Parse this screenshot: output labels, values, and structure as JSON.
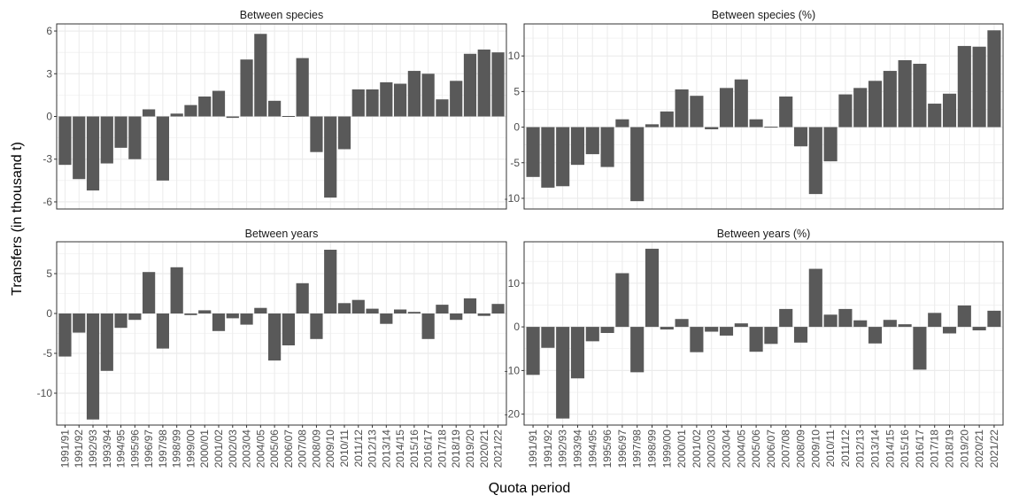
{
  "figure": {
    "ylabel": "Transfers (in thousand t)",
    "xlabel": "Quota period"
  },
  "style": {
    "bar_color": "#595959",
    "panel_bg": "#ffffff",
    "grid_color": "#ebebeb",
    "strip_bg": "#ffffff",
    "axis_text_color": "#4d4d4d"
  },
  "chart_data": [
    {
      "type": "bar",
      "title": "Between species",
      "categories": [
        "1991/91",
        "1991/92",
        "1992/93",
        "1993/94",
        "1994/95",
        "1995/96",
        "1996/97",
        "1997/98",
        "1998/99",
        "1999/00",
        "2000/01",
        "2001/02",
        "2002/03",
        "2003/04",
        "2004/05",
        "2005/06",
        "2006/07",
        "2007/08",
        "2008/09",
        "2009/10",
        "2010/11",
        "2011/12",
        "2012/13",
        "2013/14",
        "2014/15",
        "2015/16",
        "2016/17",
        "2017/18",
        "2018/19",
        "2019/20",
        "2020/21",
        "2021/22"
      ],
      "values": [
        -3.4,
        -4.4,
        -5.2,
        -3.3,
        -2.2,
        -3.0,
        0.5,
        -4.5,
        0.2,
        0.8,
        1.4,
        1.8,
        -0.1,
        4.0,
        5.8,
        1.1,
        -0.05,
        4.1,
        -2.5,
        -5.7,
        -2.3,
        1.9,
        1.9,
        2.4,
        2.3,
        3.2,
        3.0,
        1.2,
        2.5,
        4.4,
        4.7,
        4.5
      ],
      "ylim": [
        -6.5,
        6.5
      ],
      "yticks": [
        -6,
        -3,
        0,
        3,
        6
      ],
      "grid": true
    },
    {
      "type": "bar",
      "title": "Between species (%)",
      "categories": [
        "1991/91",
        "1991/92",
        "1992/93",
        "1993/94",
        "1994/95",
        "1995/96",
        "1996/97",
        "1997/98",
        "1998/99",
        "1999/00",
        "2000/01",
        "2001/02",
        "2002/03",
        "2003/04",
        "2004/05",
        "2005/06",
        "2006/07",
        "2007/08",
        "2008/09",
        "2009/10",
        "2010/11",
        "2011/12",
        "2012/13",
        "2013/14",
        "2014/15",
        "2015/16",
        "2016/17",
        "2017/18",
        "2018/19",
        "2019/20",
        "2020/21",
        "2021/22"
      ],
      "values": [
        -7.0,
        -8.5,
        -8.3,
        -5.3,
        -3.8,
        -5.6,
        1.1,
        -10.4,
        0.4,
        2.2,
        5.3,
        4.4,
        -0.3,
        5.5,
        6.7,
        1.1,
        0.0,
        4.3,
        -2.7,
        -9.4,
        -4.8,
        4.6,
        5.5,
        6.5,
        7.9,
        9.4,
        8.9,
        3.3,
        4.7,
        11.4,
        11.3,
        13.6
      ],
      "ylim": [
        -11.5,
        14.5
      ],
      "yticks": [
        -10,
        -5,
        0,
        5,
        10
      ],
      "grid": true
    },
    {
      "type": "bar",
      "title": "Between years",
      "categories": [
        "1991/91",
        "1991/92",
        "1992/93",
        "1993/94",
        "1994/95",
        "1995/96",
        "1996/97",
        "1997/98",
        "1998/99",
        "1999/00",
        "2000/01",
        "2001/02",
        "2002/03",
        "2003/04",
        "2004/05",
        "2005/06",
        "2006/07",
        "2007/08",
        "2008/09",
        "2009/10",
        "2010/11",
        "2011/12",
        "2012/13",
        "2013/14",
        "2014/15",
        "2015/16",
        "2016/17",
        "2017/18",
        "2018/19",
        "2019/20",
        "2020/21",
        "2021/22"
      ],
      "values": [
        -5.4,
        -2.4,
        -13.3,
        -7.2,
        -1.8,
        -0.8,
        5.2,
        -4.4,
        5.8,
        -0.2,
        0.4,
        -2.2,
        -0.6,
        -1.4,
        0.7,
        -5.9,
        -4.0,
        3.8,
        -3.2,
        8.0,
        1.3,
        1.7,
        0.6,
        -1.3,
        0.5,
        0.2,
        -3.2,
        1.1,
        -0.8,
        1.9,
        -0.3,
        1.2
      ],
      "ylim": [
        -14.0,
        9.0
      ],
      "yticks": [
        -10,
        -5,
        0,
        5
      ],
      "grid": true
    },
    {
      "type": "bar",
      "title": "Between years (%)",
      "categories": [
        "1991/91",
        "1991/92",
        "1992/93",
        "1993/94",
        "1994/95",
        "1995/96",
        "1996/97",
        "1997/98",
        "1998/99",
        "1999/00",
        "2000/01",
        "2001/02",
        "2002/03",
        "2003/04",
        "2004/05",
        "2005/06",
        "2006/07",
        "2007/08",
        "2008/09",
        "2009/10",
        "2010/11",
        "2011/12",
        "2012/13",
        "2013/14",
        "2014/15",
        "2015/16",
        "2016/17",
        "2017/18",
        "2018/19",
        "2019/20",
        "2020/21",
        "2021/22"
      ],
      "values": [
        -11.0,
        -4.8,
        -21.0,
        -11.8,
        -3.3,
        -1.4,
        12.3,
        -10.4,
        17.9,
        -0.6,
        1.8,
        -5.8,
        -1.1,
        -2.0,
        0.8,
        -5.7,
        -3.9,
        4.1,
        -3.6,
        13.3,
        2.8,
        4.1,
        1.5,
        -3.8,
        1.6,
        0.6,
        -9.8,
        3.2,
        -1.5,
        4.9,
        -0.8,
        3.7
      ],
      "ylim": [
        -22.5,
        19.5
      ],
      "yticks": [
        -20,
        -10,
        0,
        10
      ],
      "grid": true
    }
  ]
}
